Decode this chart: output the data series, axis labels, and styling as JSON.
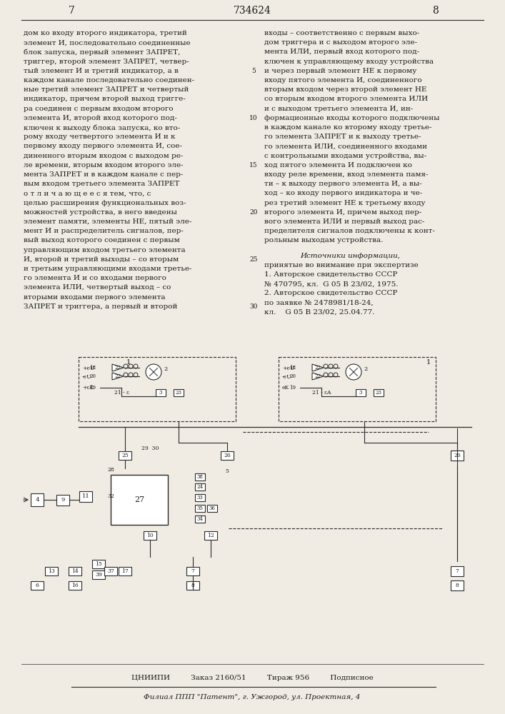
{
  "page_number_left": "7",
  "patent_number": "734624",
  "page_number_right": "8",
  "background_color": "#f0ece4",
  "text_color": "#1a1a1a",
  "line_color": "#2a2a2a",
  "left_column_text": [
    "дом ко входу второго индикатора, третий",
    "элемент И, последовательно соединенные",
    "блок запуска, первый элемент ЗАПРЕТ,",
    "триггер, второй элемент ЗАПРЕТ, четвер-",
    "тый элемент И и третий индикатор, а в",
    "каждом канале последовательно соединен-",
    "ные третий элемент ЗАПРЕТ и четвертый",
    "индикатор, причем второй выход тригге-",
    "ра соединен с первым входом второго",
    "элемента И, второй вход которого под-",
    "ключен к выходу блока запуска, ко вто-",
    "рому входу четвертого элемента И и к",
    "первому входу первого элемента И, сое-",
    "диненного вторым входом с выходом ре-",
    "ле времени, вторым входом второго эле-",
    "мента ЗАПРЕТ и в каждом канале с пер-",
    "вым входом третьего элемента ЗАПРЕТ",
    "о т л и ч а ю щ е е с я тем, что, с",
    "целью расширения функциональных воз-",
    "можностей устройства, в него введены",
    "элемент памяти, элементы НЕ, пятый эле-",
    "мент И и распределитель сигналов, пер-",
    "вый выход которого соединен с первым",
    "управляющим входом третьего элемента",
    "И, второй и третий выходы – со вторым",
    "и третьим управляющими входами третье-",
    "го элемента И и со входами первого",
    "элемента ИЛИ, четвертый выход – со",
    "вторыми входами первого элемента",
    "ЗАПРЕТ и триггера, а первый и второй"
  ],
  "right_column_text": [
    "входы – соответственно с первым выхо-",
    "дом триггера и с выходом второго эле-",
    "мента ИЛИ, первый вход которого под-",
    "ключен к управляющему входу устройства",
    "и через первый элемент НЕ к первому",
    "входу пятого элемента И, соединенного",
    "вторым входом через второй элемент НЕ",
    "со вторым входом второго элемента ИЛИ",
    "и с выходом третьего элемента И, ин-",
    "формационные входы которого подключены",
    "в каждом канале ко второму входу третье-",
    "го элемента ЗАПРЕТ и к выходу третье-",
    "го элемента ИЛИ, соединенного входами",
    "с контрольными входами устройства, вы-",
    "ход пятого элемента И подключен ко",
    "входу реле времени, вход элемента памя-",
    "ти – к выходу первого элемента И, а вы-",
    "ход – ко входу первого индикатора и че-",
    "рез третий элемент НЕ к третьему входу",
    "второго элемента И, причем выход пер-",
    "вого элемента ИЛИ и первый выход рас-",
    "пределителя сигналов подключены к конт-",
    "рольным выходам устройства."
  ],
  "sources_header": "Источники информации,",
  "sources_text": [
    "принятые во внимание при экспертизе",
    "1. Авторское свидетельство СССР",
    "№ 470795, кл.  G 05 В 23/02, 1975.",
    "2. Авторское свидетельство СССР",
    "по заявке № 2478981/18-24,",
    "кл.    G 05 В 23/02, 25.04.77."
  ],
  "footer_line1": "ЦНИИПИ         Заказ 2160/51         Тираж 956         Подписное",
  "footer_line2": "Филиал ППП \"Патент\", г. Ужгород, ул. Проектная, 4"
}
